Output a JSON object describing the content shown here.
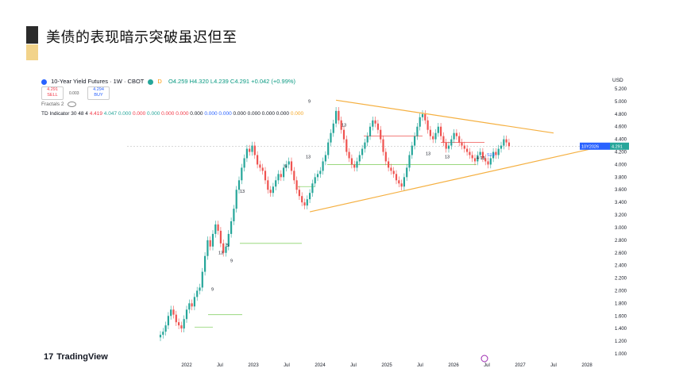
{
  "slide": {
    "title": "美债的表现暗示突破虽迟但至"
  },
  "widget": {
    "symbol": "10-Year Yield Futures · 1W · CBOT",
    "ohlc": "O4.259  H4.320  L4.239  C4.291  +0.042 (+0.99%)",
    "sell_price": "4.291",
    "sell_label": "SELL",
    "buy_price": "4.294",
    "buy_label": "BUY",
    "spread": "0.003",
    "fractals": "Fractals 2",
    "td_indicator": "TD Indicator 30 48 4",
    "td_values": [
      "4.419",
      "4.047",
      "0.000",
      "0.000",
      "0.000",
      "0.000",
      "0.000",
      "0.000",
      "0.000",
      "0.000",
      "0.000",
      "0.000",
      "0.000",
      "0.000",
      "0.000"
    ],
    "currency": "USD",
    "logo": "TradingView",
    "price_tag_symbol": "10Y2026",
    "price_tag_value": "4.291",
    "colors": {
      "up": "#26a69a",
      "down": "#ef5350",
      "trendline": "#f5b041",
      "support": "#8bd26b",
      "tag": "#2962ff"
    }
  },
  "chart_data": {
    "type": "candlestick",
    "title": "10-Year Yield Futures · 1W · CBOT",
    "ylabel": "USD",
    "ylim": [
      1.0,
      5.2
    ],
    "yticks": [
      "5.200",
      "5.000",
      "4.800",
      "4.600",
      "4.400",
      "4.200",
      "4.000",
      "3.800",
      "3.600",
      "3.400",
      "3.200",
      "3.000",
      "2.800",
      "2.600",
      "2.400",
      "2.200",
      "2.000",
      "1.800",
      "1.600",
      "1.400",
      "1.200",
      "1.000"
    ],
    "x_tick_labels": [
      "2022",
      "Jul",
      "2023",
      "Jul",
      "2024",
      "Jul",
      "2025",
      "Jul",
      "2026",
      "Jul",
      "2027",
      "Jul",
      "2028"
    ],
    "series": [
      {
        "values": [
          1.3,
          1.35,
          1.45,
          1.6,
          1.7,
          1.62,
          1.5,
          1.45,
          1.4,
          1.55,
          1.7,
          1.8,
          1.75,
          1.9,
          2.0,
          2.05,
          2.3,
          2.55,
          2.8,
          2.7,
          2.9,
          3.05,
          2.95,
          2.75,
          2.6,
          2.7,
          2.9,
          3.1,
          3.3,
          3.6,
          3.75,
          3.95,
          4.1,
          4.25,
          4.2,
          4.3,
          4.15,
          4.0,
          3.95,
          3.9,
          3.75,
          3.6,
          3.55,
          3.65,
          3.75,
          3.85,
          3.8,
          3.95,
          4.0,
          4.05,
          3.9,
          3.75,
          3.6,
          3.5,
          3.4,
          3.35,
          3.45,
          3.55,
          3.7,
          3.8,
          3.85,
          3.9,
          4.05,
          4.15,
          4.35,
          4.5,
          4.65,
          4.85,
          4.7,
          4.55,
          4.4,
          4.2,
          4.1,
          4.0,
          3.95,
          4.05,
          4.15,
          4.25,
          4.35,
          4.45,
          4.6,
          4.7,
          4.65,
          4.55,
          4.4,
          4.2,
          4.05,
          3.95,
          3.9,
          3.85,
          3.75,
          3.7,
          3.65,
          3.8,
          3.95,
          4.15,
          4.3,
          4.45,
          4.6,
          4.75,
          4.8,
          4.7,
          4.55,
          4.45,
          4.4,
          4.5,
          4.6,
          4.45,
          4.35,
          4.25,
          4.3,
          4.4,
          4.5,
          4.45,
          4.35,
          4.3,
          4.25,
          4.2,
          4.15,
          4.1,
          4.05,
          4.15,
          4.2,
          4.1,
          4.05,
          4.0,
          4.1,
          4.2,
          4.15,
          4.25,
          4.3,
          4.4,
          4.35,
          4.29
        ]
      }
    ],
    "trendlines": [
      {
        "name": "upper",
        "from": [
          67,
          5.02
        ],
        "to": [
          150,
          4.5
        ]
      },
      {
        "name": "lower",
        "from": [
          57,
          3.25
        ],
        "to": [
          170,
          4.3
        ]
      }
    ],
    "support_levels": [
      1.42,
      1.62,
      2.75,
      3.65,
      4.0
    ],
    "annotations": [
      "9",
      "13",
      "5",
      "9",
      "13",
      "9",
      "13",
      "5",
      "13",
      "13",
      "13",
      "4 13",
      "S13"
    ],
    "last_price": 4.291
  }
}
